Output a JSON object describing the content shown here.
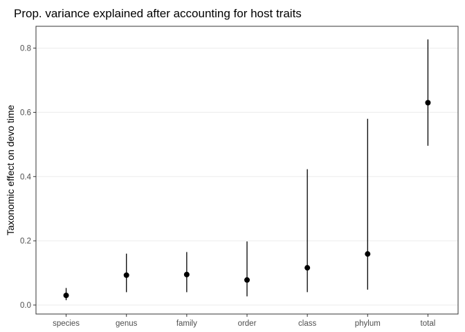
{
  "chart_data": {
    "type": "scatter",
    "title": "Prop. variance explained after accounting for host traits",
    "xlabel": "",
    "ylabel": "Taxonomic effect on devo time",
    "categories": [
      "species",
      "genus",
      "family",
      "order",
      "class",
      "phylum",
      "total"
    ],
    "series": [
      {
        "values": [
          0.03,
          0.093,
          0.095,
          0.078,
          0.116,
          0.159,
          0.63
        ],
        "lower": [
          0.015,
          0.04,
          0.04,
          0.027,
          0.04,
          0.048,
          0.496
        ],
        "upper": [
          0.053,
          0.16,
          0.165,
          0.198,
          0.423,
          0.58,
          0.827
        ]
      }
    ],
    "y_ticks": [
      "0.0",
      "0.2",
      "0.4",
      "0.6",
      "0.8"
    ],
    "ylim": [
      -0.028,
      0.868
    ],
    "grid": true,
    "legend": "none"
  }
}
